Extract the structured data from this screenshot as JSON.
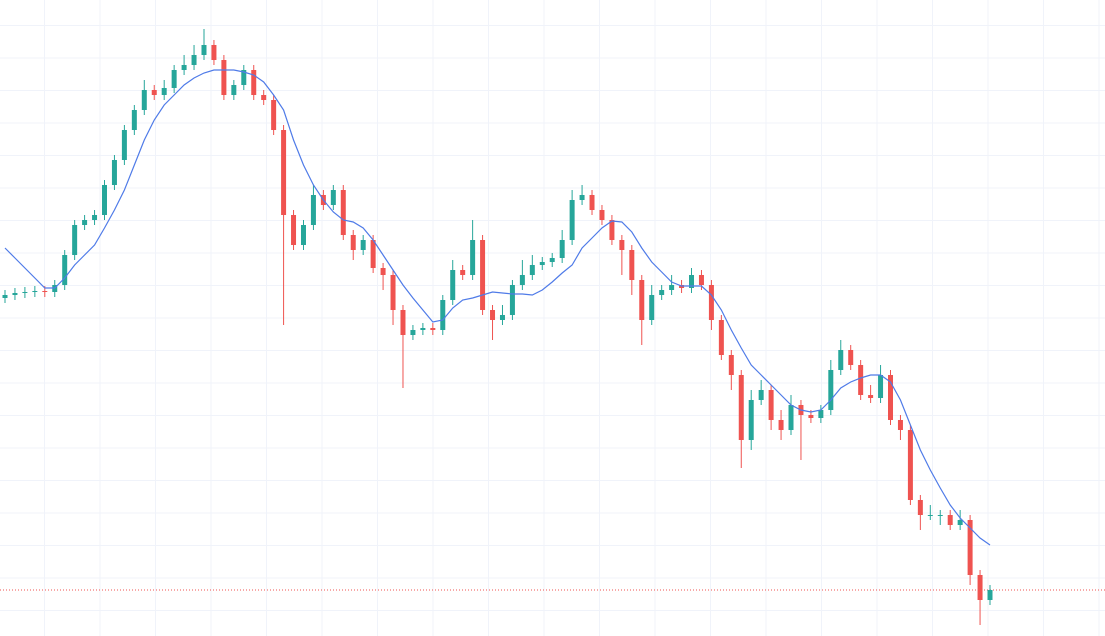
{
  "chart_data": {
    "type": "candlestick",
    "ylim": [
      0,
      636
    ],
    "up_color": "#26a69a",
    "down_color": "#ef5350",
    "open": [
      338,
      341,
      343,
      344,
      345,
      344,
      351,
      381,
      411,
      416,
      421,
      451,
      476,
      506,
      526,
      546,
      541,
      548,
      566,
      571,
      581,
      591,
      576,
      541,
      551,
      566,
      541,
      536,
      506,
      421,
      391,
      411,
      441,
      431,
      446,
      401,
      386,
      396,
      368,
      361,
      326,
      301,
      306,
      308,
      306,
      336,
      366,
      361,
      396,
      326,
      316,
      321,
      351,
      361,
      371,
      374,
      378,
      396,
      436,
      441,
      426,
      416,
      396,
      386,
      356,
      316,
      341,
      346,
      351,
      348,
      361,
      351,
      316,
      281,
      261,
      196,
      236,
      246,
      216,
      206,
      231,
      221,
      218,
      226,
      266,
      286,
      271,
      241,
      238,
      261,
      216,
      206,
      136,
      121,
      121,
      121,
      111,
      116,
      61,
      36
    ],
    "high": [
      346,
      348,
      349,
      350,
      350,
      356,
      386,
      416,
      421,
      426,
      456,
      481,
      511,
      531,
      556,
      551,
      556,
      571,
      581,
      591,
      607,
      596,
      581,
      556,
      571,
      571,
      546,
      541,
      511,
      426,
      416,
      451,
      446,
      451,
      451,
      406,
      401,
      401,
      373,
      366,
      331,
      311,
      313,
      313,
      341,
      376,
      371,
      416,
      401,
      331,
      331,
      356,
      376,
      381,
      379,
      383,
      406,
      446,
      451,
      446,
      431,
      421,
      401,
      391,
      361,
      351,
      351,
      361,
      356,
      368,
      366,
      356,
      321,
      286,
      266,
      246,
      256,
      251,
      226,
      241,
      236,
      226,
      231,
      276,
      296,
      291,
      276,
      251,
      271,
      266,
      221,
      211,
      141,
      131,
      126,
      126,
      126,
      121,
      66,
      51
    ],
    "low": [
      333,
      336,
      338,
      339,
      339,
      339,
      346,
      376,
      406,
      411,
      416,
      446,
      471,
      501,
      521,
      536,
      536,
      543,
      561,
      566,
      576,
      571,
      536,
      536,
      546,
      536,
      531,
      501,
      311,
      386,
      386,
      406,
      426,
      426,
      396,
      376,
      381,
      363,
      346,
      311,
      248,
      296,
      301,
      301,
      301,
      331,
      356,
      356,
      321,
      296,
      311,
      316,
      346,
      356,
      366,
      369,
      373,
      391,
      431,
      421,
      411,
      391,
      361,
      341,
      291,
      311,
      336,
      341,
      343,
      343,
      346,
      306,
      276,
      246,
      168,
      186,
      231,
      206,
      196,
      201,
      176,
      213,
      213,
      221,
      261,
      266,
      236,
      233,
      233,
      211,
      196,
      131,
      106,
      116,
      111,
      106,
      106,
      51,
      11,
      31
    ],
    "close": [
      341,
      343,
      344,
      345,
      344,
      351,
      381,
      411,
      416,
      421,
      451,
      476,
      506,
      526,
      546,
      541,
      548,
      566,
      571,
      581,
      591,
      576,
      541,
      551,
      566,
      541,
      536,
      506,
      421,
      391,
      411,
      441,
      431,
      446,
      401,
      386,
      396,
      368,
      361,
      326,
      301,
      306,
      308,
      306,
      336,
      366,
      361,
      396,
      326,
      316,
      321,
      351,
      361,
      371,
      374,
      378,
      396,
      436,
      441,
      426,
      416,
      396,
      386,
      356,
      316,
      341,
      346,
      351,
      348,
      361,
      351,
      316,
      281,
      261,
      196,
      236,
      246,
      216,
      206,
      231,
      221,
      218,
      226,
      266,
      286,
      271,
      241,
      238,
      261,
      216,
      206,
      136,
      121,
      121,
      121,
      111,
      116,
      61,
      36,
      46
    ],
    "ma": {
      "color": "#4f7be8",
      "values": [
        388,
        378,
        368,
        358,
        348,
        348,
        358,
        371,
        381,
        391,
        408,
        426,
        446,
        471,
        496,
        516,
        531,
        541,
        551,
        558,
        563,
        566,
        566,
        566,
        564,
        561,
        554,
        541,
        526,
        496,
        471,
        451,
        436,
        424,
        416,
        414,
        408,
        396,
        381,
        366,
        351,
        338,
        326,
        314,
        316,
        328,
        336,
        338,
        341,
        344,
        343,
        342,
        342,
        341,
        346,
        354,
        363,
        371,
        388,
        398,
        408,
        415,
        414,
        404,
        388,
        374,
        364,
        354,
        350,
        350,
        350,
        341,
        326,
        306,
        288,
        271,
        261,
        251,
        241,
        231,
        226,
        224,
        226,
        236,
        248,
        254,
        258,
        261,
        261,
        254,
        236,
        211,
        186,
        166,
        148,
        131,
        118,
        108,
        98,
        91
      ]
    },
    "last_price_line": {
      "value": 46,
      "color": "#ef5350"
    }
  }
}
